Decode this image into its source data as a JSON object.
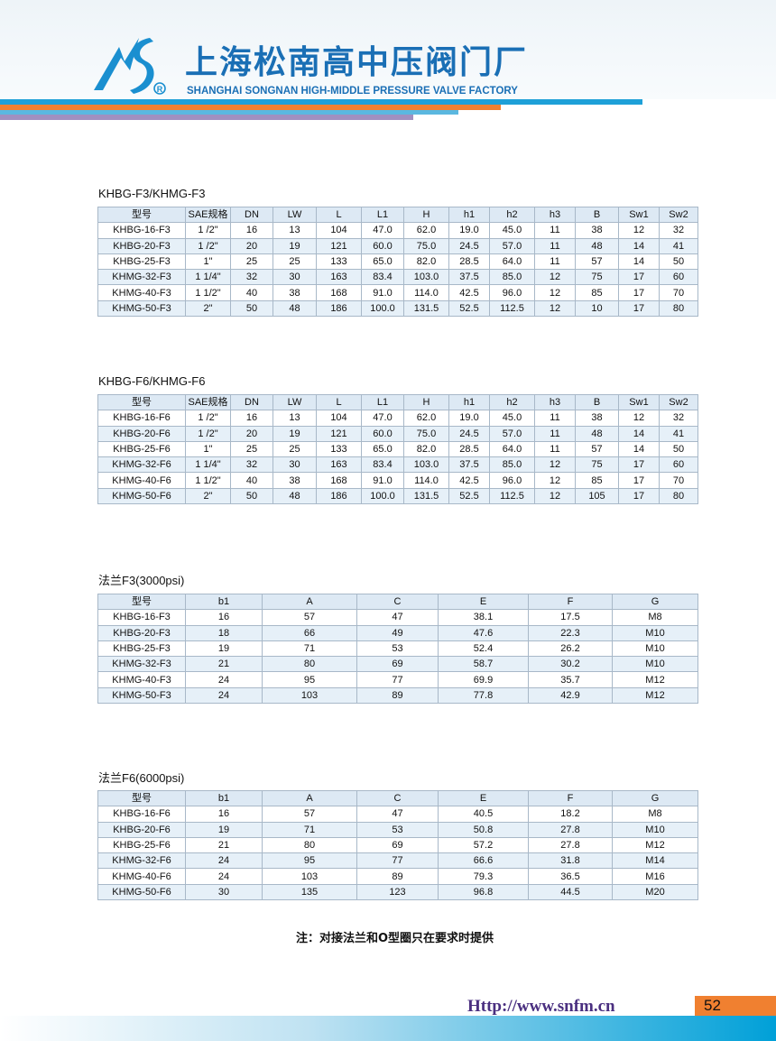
{
  "header": {
    "title_cn": "上海松南高中压阀门厂",
    "title_en": "SHANGHAI SONGNAN HIGH-MIDDLE PRESSURE VALVE FACTORY",
    "registered": "®",
    "logo_text": "NS",
    "colors": {
      "brand": "#1a6fb5",
      "stripe_blue": "#1ea0d8",
      "stripe_orange": "#f08030",
      "stripe_light": "#5bb8e0",
      "stripe_purple": "#a090c0"
    }
  },
  "tables": [
    {
      "title": "KHBG-F3/KHMG-F3",
      "headers": [
        "型号",
        "SAE规格",
        "DN",
        "LW",
        "L",
        "L1",
        "H",
        "h1",
        "h2",
        "h3",
        "B",
        "Sw1",
        "Sw2"
      ],
      "rows": [
        [
          "KHBG-16-F3",
          "1 /2\"",
          "16",
          "13",
          "104",
          "47.0",
          "62.0",
          "19.0",
          "45.0",
          "11",
          "38",
          "12",
          "32"
        ],
        [
          "KHBG-20-F3",
          "1 /2\"",
          "20",
          "19",
          "121",
          "60.0",
          "75.0",
          "24.5",
          "57.0",
          "11",
          "48",
          "14",
          "41"
        ],
        [
          "KHBG-25-F3",
          "1\"",
          "25",
          "25",
          "133",
          "65.0",
          "82.0",
          "28.5",
          "64.0",
          "11",
          "57",
          "14",
          "50"
        ],
        [
          "KHMG-32-F3",
          "1 1/4\"",
          "32",
          "30",
          "163",
          "83.4",
          "103.0",
          "37.5",
          "85.0",
          "12",
          "75",
          "17",
          "60"
        ],
        [
          "KHMG-40-F3",
          "1 1/2\"",
          "40",
          "38",
          "168",
          "91.0",
          "114.0",
          "42.5",
          "96.0",
          "12",
          "85",
          "17",
          "70"
        ],
        [
          "KHMG-50-F3",
          "2\"",
          "50",
          "48",
          "186",
          "100.0",
          "131.5",
          "52.5",
          "112.5",
          "12",
          "10",
          "17",
          "80"
        ]
      ]
    },
    {
      "title": "KHBG-F6/KHMG-F6",
      "headers": [
        "型号",
        "SAE规格",
        "DN",
        "LW",
        "L",
        "L1",
        "H",
        "h1",
        "h2",
        "h3",
        "B",
        "Sw1",
        "Sw2"
      ],
      "rows": [
        [
          "KHBG-16-F6",
          "1 /2\"",
          "16",
          "13",
          "104",
          "47.0",
          "62.0",
          "19.0",
          "45.0",
          "11",
          "38",
          "12",
          "32"
        ],
        [
          "KHBG-20-F6",
          "1 /2\"",
          "20",
          "19",
          "121",
          "60.0",
          "75.0",
          "24.5",
          "57.0",
          "11",
          "48",
          "14",
          "41"
        ],
        [
          "KHBG-25-F6",
          "1\"",
          "25",
          "25",
          "133",
          "65.0",
          "82.0",
          "28.5",
          "64.0",
          "11",
          "57",
          "14",
          "50"
        ],
        [
          "KHMG-32-F6",
          "1 1/4\"",
          "32",
          "30",
          "163",
          "83.4",
          "103.0",
          "37.5",
          "85.0",
          "12",
          "75",
          "17",
          "60"
        ],
        [
          "KHMG-40-F6",
          "1 1/2\"",
          "40",
          "38",
          "168",
          "91.0",
          "114.0",
          "42.5",
          "96.0",
          "12",
          "85",
          "17",
          "70"
        ],
        [
          "KHMG-50-F6",
          "2\"",
          "50",
          "48",
          "186",
          "100.0",
          "131.5",
          "52.5",
          "112.5",
          "12",
          "105",
          "17",
          "80"
        ]
      ]
    },
    {
      "title": "法兰F3(3000psi)",
      "headers": [
        "型号",
        "b1",
        "A",
        "C",
        "E",
        "F",
        "G"
      ],
      "rows": [
        [
          "KHBG-16-F3",
          "16",
          "57",
          "47",
          "38.1",
          "17.5",
          "M8"
        ],
        [
          "KHBG-20-F3",
          "18",
          "66",
          "49",
          "47.6",
          "22.3",
          "M10"
        ],
        [
          "KHBG-25-F3",
          "19",
          "71",
          "53",
          "52.4",
          "26.2",
          "M10"
        ],
        [
          "KHMG-32-F3",
          "21",
          "80",
          "69",
          "58.7",
          "30.2",
          "M10"
        ],
        [
          "KHMG-40-F3",
          "24",
          "95",
          "77",
          "69.9",
          "35.7",
          "M12"
        ],
        [
          "KHMG-50-F3",
          "24",
          "103",
          "89",
          "77.8",
          "42.9",
          "M12"
        ]
      ]
    },
    {
      "title": "法兰F6(6000psi)",
      "headers": [
        "型号",
        "b1",
        "A",
        "C",
        "E",
        "F",
        "G"
      ],
      "rows": [
        [
          "KHBG-16-F6",
          "16",
          "57",
          "47",
          "40.5",
          "18.2",
          "M8"
        ],
        [
          "KHBG-20-F6",
          "19",
          "71",
          "53",
          "50.8",
          "27.8",
          "M10"
        ],
        [
          "KHBG-25-F6",
          "21",
          "80",
          "69",
          "57.2",
          "27.8",
          "M12"
        ],
        [
          "KHMG-32-F6",
          "24",
          "95",
          "77",
          "66.6",
          "31.8",
          "M14"
        ],
        [
          "KHMG-40-F6",
          "24",
          "103",
          "89",
          "79.3",
          "36.5",
          "M16"
        ],
        [
          "KHMG-50-F6",
          "30",
          "135",
          "123",
          "96.8",
          "44.5",
          "M20"
        ]
      ]
    }
  ],
  "note": "注：对接法兰和O型圈只在要求时提供",
  "footer": {
    "url": "Http://www.snfm.cn",
    "page": "52"
  }
}
